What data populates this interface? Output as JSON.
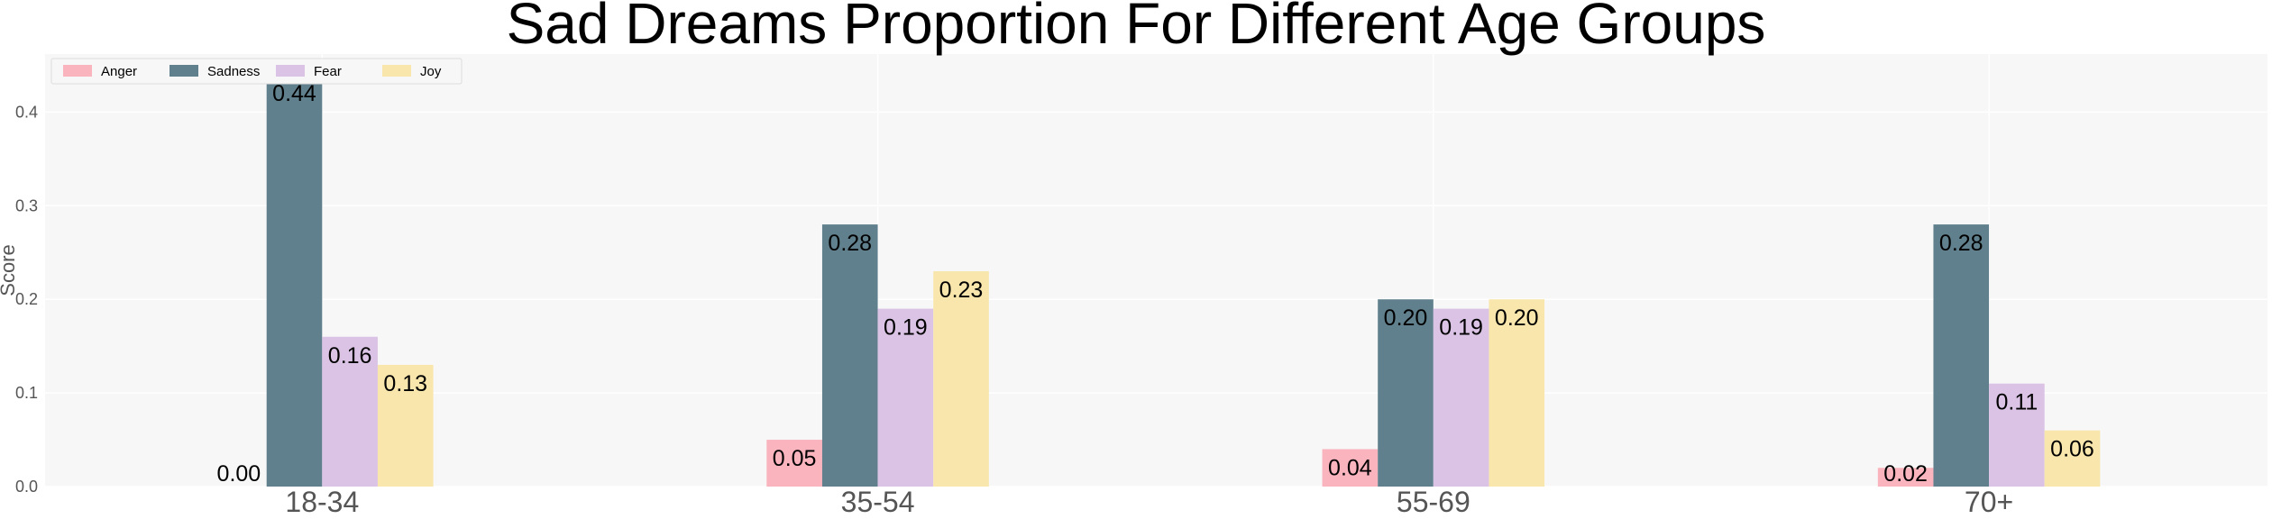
{
  "chart_data": {
    "type": "bar",
    "title": "Sad Dreams Proportion For Different Age Groups",
    "xlabel": "",
    "ylabel": "Score",
    "categories": [
      "18-34",
      "35-54",
      "55-69",
      "70+"
    ],
    "series": [
      {
        "name": "Anger",
        "color": "#F9B4BE",
        "values": [
          0.0,
          0.05,
          0.04,
          0.02
        ]
      },
      {
        "name": "Sadness",
        "color": "#61808D",
        "values": [
          0.44,
          0.28,
          0.2,
          0.28
        ]
      },
      {
        "name": "Fear",
        "color": "#DBC3E5",
        "values": [
          0.16,
          0.19,
          0.19,
          0.11
        ]
      },
      {
        "name": "Joy",
        "color": "#F8E6AC",
        "values": [
          0.13,
          0.23,
          0.2,
          0.06
        ]
      }
    ],
    "data_labels": [
      [
        "0.00",
        "0.05",
        "0.04",
        "0.02"
      ],
      [
        "0.44",
        "0.28",
        "0.20",
        "0.28"
      ],
      [
        "0.16",
        "0.19",
        "0.19",
        "0.11"
      ],
      [
        "0.13",
        "0.23",
        "0.20",
        "0.06"
      ]
    ],
    "ylim": [
      0,
      0.462
    ],
    "yticks": [
      "0.0",
      "0.1",
      "0.2",
      "0.3",
      "0.4"
    ],
    "grid": true,
    "legend": "top-left",
    "background": "#F7F7F7"
  }
}
